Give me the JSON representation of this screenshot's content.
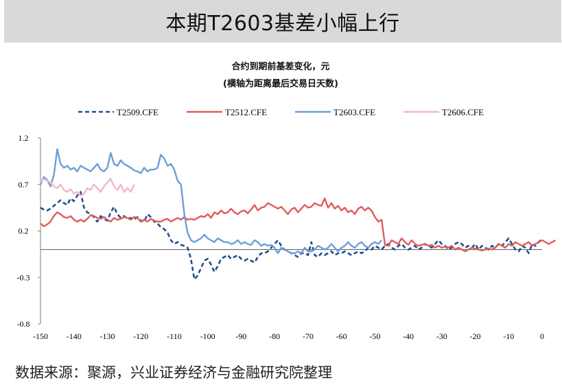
{
  "banner": {
    "title": "本期T2603基差小幅上行"
  },
  "source": {
    "text": "数据来源：聚源，兴业证券经济与金融研究院整理"
  },
  "chart_data": {
    "type": "line",
    "title": "合约到期前基差变化，元",
    "subtitle": "(横轴为距离最后交易日天数)",
    "xlabel": "",
    "ylabel": "",
    "xlim": [
      -150,
      0
    ],
    "ylim": [
      -0.8,
      1.2
    ],
    "x_ticks": [
      -150,
      -140,
      -130,
      -120,
      -110,
      -100,
      -90,
      -80,
      -70,
      -60,
      -50,
      -40,
      -30,
      -20,
      -10,
      0
    ],
    "y_ticks": [
      1.2,
      0.7,
      0.2,
      -0.3,
      -0.8
    ],
    "y_tick_labels": [
      "1.2",
      "0.7",
      "0.2",
      "-0.3",
      "-0.8"
    ],
    "zero_line": true,
    "legend_position": "top",
    "series": [
      {
        "name": "T2509.CFE",
        "color": "#1f4e8c",
        "dash": "6,4",
        "x_start": -150,
        "values": [
          0.45,
          0.43,
          0.42,
          0.44,
          0.47,
          0.5,
          0.53,
          0.5,
          0.48,
          0.55,
          0.52,
          0.58,
          0.62,
          0.45,
          0.4,
          0.38,
          0.35,
          0.3,
          0.36,
          0.33,
          0.31,
          0.4,
          0.46,
          0.38,
          0.34,
          0.36,
          0.33,
          0.34,
          0.32,
          0.35,
          0.31,
          0.3,
          0.38,
          0.35,
          0.3,
          0.28,
          0.24,
          0.22,
          0.18,
          0.1,
          0.06,
          0.08,
          0.05,
          0.04,
          0.02,
          -0.1,
          -0.32,
          -0.28,
          -0.2,
          -0.12,
          -0.1,
          -0.16,
          -0.24,
          -0.18,
          -0.1,
          -0.08,
          -0.06,
          -0.1,
          -0.08,
          -0.06,
          -0.1,
          -0.12,
          -0.1,
          -0.12,
          -0.14,
          -0.08,
          -0.04,
          -0.04,
          -0.02,
          0.02,
          0.06,
          0.1,
          0.04,
          0.0,
          -0.02,
          -0.04,
          -0.06,
          -0.08,
          -0.04,
          -0.04,
          -0.06,
          0.08,
          -0.06,
          -0.08,
          -0.04,
          -0.06,
          -0.04,
          -0.02,
          -0.06,
          -0.04,
          -0.04,
          -0.02,
          -0.04,
          -0.06,
          -0.04,
          -0.02,
          -0.04,
          -0.02,
          0.02,
          0.0,
          0.04,
          0.02,
          0.0,
          0.04,
          0.06,
          0.02,
          0.0,
          0.04,
          0.06,
          0.02,
          0.0,
          0.02,
          0.04,
          0.0,
          0.02,
          0.06,
          0.04,
          0.02,
          0.06,
          0.1,
          0.06,
          0.04,
          0.0,
          0.02,
          0.06,
          0.08,
          0.06,
          0.02,
          0.04,
          0.02,
          0.06,
          0.0,
          0.04,
          0.02,
          0.0,
          0.04,
          0.02,
          0.06,
          0.04,
          0.08,
          0.12,
          0.06,
          0.0,
          -0.02,
          0.04,
          0.02,
          -0.04,
          0.06,
          0.04,
          0.08,
          0.12
        ]
      },
      {
        "name": "T2512.CFE",
        "color": "#e05a5a",
        "dash": "",
        "x_start": -150,
        "values": [
          0.28,
          0.25,
          0.27,
          0.3,
          0.36,
          0.4,
          0.38,
          0.35,
          0.34,
          0.36,
          0.32,
          0.3,
          0.32,
          0.3,
          0.33,
          0.37,
          0.36,
          0.34,
          0.33,
          0.35,
          0.32,
          0.3,
          0.34,
          0.32,
          0.33,
          0.35,
          0.34,
          0.32,
          0.35,
          0.34,
          0.3,
          0.32,
          0.3,
          0.33,
          0.31,
          0.3,
          0.3,
          0.32,
          0.33,
          0.3,
          0.32,
          0.34,
          0.32,
          0.35,
          0.32,
          0.33,
          0.32,
          0.34,
          0.36,
          0.35,
          0.38,
          0.34,
          0.4,
          0.38,
          0.42,
          0.39,
          0.4,
          0.44,
          0.4,
          0.38,
          0.41,
          0.42,
          0.39,
          0.43,
          0.48,
          0.42,
          0.45,
          0.46,
          0.5,
          0.48,
          0.46,
          0.44,
          0.46,
          0.42,
          0.38,
          0.43,
          0.45,
          0.4,
          0.44,
          0.48,
          0.45,
          0.46,
          0.5,
          0.48,
          0.47,
          0.55,
          0.45,
          0.5,
          0.44,
          0.47,
          0.42,
          0.45,
          0.4,
          0.42,
          0.38,
          0.44,
          0.46,
          0.42,
          0.45,
          0.42,
          0.35,
          0.3,
          0.32,
          0.05,
          0.04,
          0.1,
          0.08,
          0.06,
          0.12,
          0.08,
          0.05,
          0.1,
          0.06,
          0.04,
          0.05,
          0.06,
          0.04,
          0.05,
          0.02,
          0.04,
          0.02,
          0.03,
          0.02,
          0.04,
          0.0,
          0.02,
          0.0,
          -0.02,
          0.0,
          0.02,
          0.01,
          0.0,
          -0.01,
          0.0,
          0.01,
          0.0,
          0.02,
          0.06,
          0.04,
          0.02,
          0.06,
          0.04,
          0.08,
          0.06,
          0.04,
          0.06,
          0.08,
          0.04,
          0.06,
          0.08,
          0.1,
          0.08,
          0.06,
          0.08,
          0.1
        ]
      },
      {
        "name": "T2603.CFE",
        "color": "#6a9fd8",
        "dash": "",
        "x_start": -150,
        "values": [
          0.7,
          0.78,
          0.75,
          0.68,
          0.8,
          1.08,
          0.92,
          0.88,
          0.9,
          0.86,
          0.88,
          0.84,
          0.9,
          0.88,
          0.86,
          0.84,
          0.88,
          0.92,
          0.86,
          0.84,
          0.88,
          1.04,
          0.92,
          0.9,
          0.96,
          0.92,
          0.9,
          0.88,
          0.85,
          0.84,
          0.82,
          0.88,
          0.84,
          0.86,
          0.86,
          0.88,
          1.02,
          0.98,
          0.9,
          0.92,
          0.86,
          0.74,
          0.7,
          0.38,
          0.18,
          0.1,
          0.08,
          0.1,
          0.12,
          0.16,
          0.12,
          0.1,
          0.08,
          0.12,
          0.1,
          0.08,
          0.08,
          0.06,
          0.07,
          0.1,
          0.06,
          0.08,
          0.06,
          0.05,
          0.1,
          0.08,
          0.04,
          0.06,
          0.04,
          0.05,
          0.02,
          -0.04,
          0.02,
          0.0,
          -0.02,
          -0.04,
          -0.04,
          -0.02,
          -0.04,
          0.02,
          -0.02,
          -0.02,
          0.0,
          0.04,
          0.02,
          0.0,
          0.02,
          0.06,
          0.02,
          -0.02,
          0.02,
          0.04,
          0.08,
          0.04,
          0.02,
          0.06,
          0.08,
          0.04,
          0.02,
          0.06,
          0.08,
          0.06,
          0.1
        ]
      },
      {
        "name": "T2606.CFE",
        "color": "#f4b6c2",
        "dash": "",
        "x_start": -150,
        "values": [
          0.72,
          0.76,
          0.74,
          0.72,
          0.68,
          0.66,
          0.7,
          0.64,
          0.62,
          0.65,
          0.6,
          0.62,
          0.58,
          0.6,
          0.66,
          0.64,
          0.7,
          0.66,
          0.62,
          0.68,
          0.72,
          0.76,
          0.68,
          0.64,
          0.7,
          0.62,
          0.66,
          0.62,
          0.7
        ]
      }
    ]
  }
}
